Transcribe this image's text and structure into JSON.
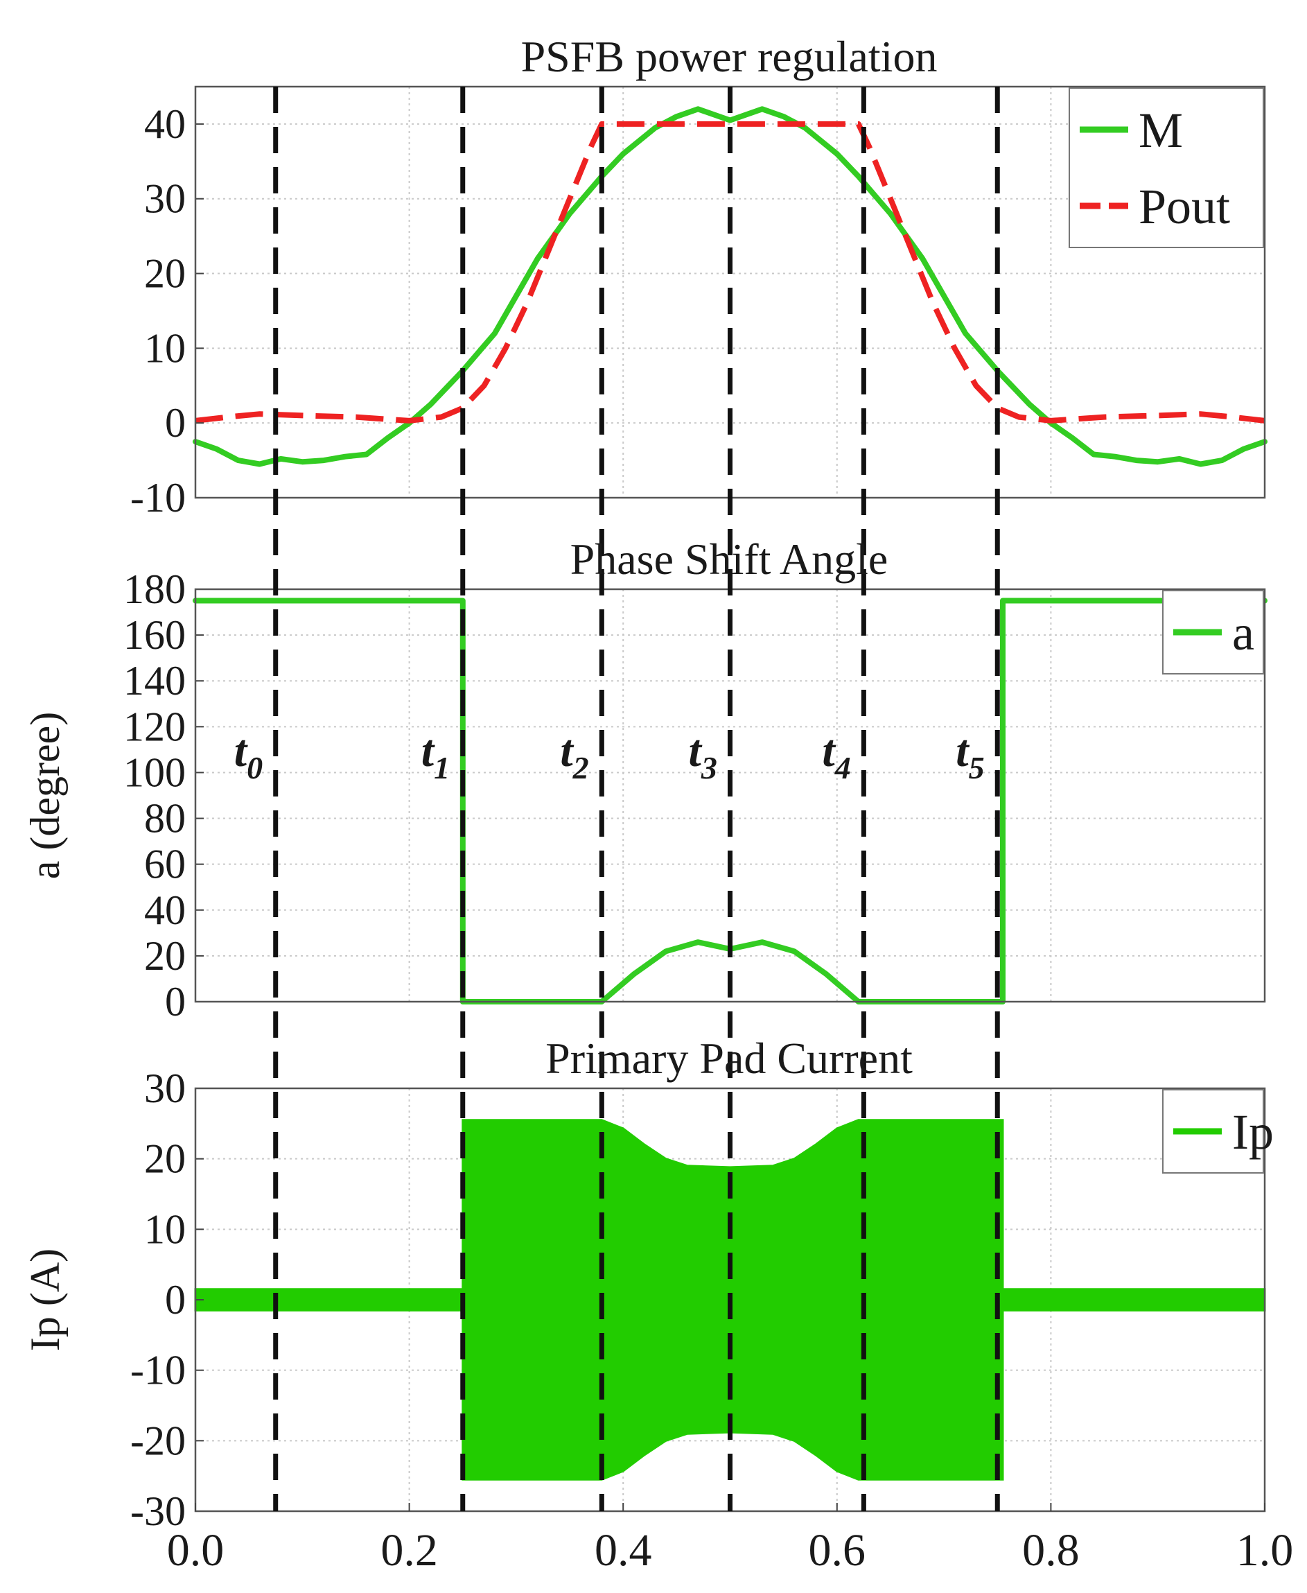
{
  "chart_data": [
    {
      "type": "line",
      "title": "PSFB power regulation",
      "xlabel": "",
      "ylabel": "",
      "xlim": [
        0,
        1
      ],
      "ylim": [
        -10,
        45
      ],
      "yticks": [
        40,
        30,
        20,
        10,
        0,
        -10
      ],
      "grid": true,
      "legend": "top-right",
      "series": [
        {
          "name": "M",
          "color": "#33cc22",
          "style": "solid",
          "x": [
            0.0,
            0.02,
            0.04,
            0.06,
            0.08,
            0.1,
            0.12,
            0.14,
            0.16,
            0.18,
            0.2,
            0.22,
            0.25,
            0.28,
            0.3,
            0.32,
            0.35,
            0.38,
            0.4,
            0.43,
            0.45,
            0.47,
            0.5,
            0.53,
            0.55,
            0.57,
            0.6,
            0.62,
            0.65,
            0.68,
            0.7,
            0.72,
            0.75,
            0.78,
            0.8,
            0.82,
            0.84,
            0.86,
            0.88,
            0.9,
            0.92,
            0.94,
            0.96,
            0.98,
            1.0
          ],
          "y": [
            -2.5,
            -3.5,
            -5,
            -5.5,
            -4.8,
            -5.2,
            -5,
            -4.5,
            -4.2,
            -2,
            0,
            2.5,
            7,
            12,
            17,
            22,
            28,
            33,
            36,
            39.5,
            41,
            42,
            40.5,
            42,
            41,
            39.5,
            36,
            33,
            28,
            22,
            17,
            12,
            7,
            2.5,
            0,
            -2,
            -4.2,
            -4.5,
            -5,
            -5.2,
            -4.8,
            -5.5,
            -5,
            -3.5,
            -2.5
          ]
        },
        {
          "name": "Pout",
          "color": "#ee2222",
          "style": "dashed",
          "x": [
            0.0,
            0.03,
            0.06,
            0.1,
            0.15,
            0.2,
            0.23,
            0.25,
            0.27,
            0.29,
            0.31,
            0.33,
            0.35,
            0.37,
            0.38,
            0.62,
            0.63,
            0.65,
            0.67,
            0.69,
            0.71,
            0.73,
            0.75,
            0.77,
            0.8,
            0.85,
            0.9,
            0.94,
            0.97,
            1.0
          ],
          "y": [
            0.3,
            0.8,
            1.2,
            1.0,
            0.8,
            0.3,
            0.8,
            2.0,
            5.0,
            10.0,
            16.0,
            23.0,
            30.0,
            37.0,
            40.0,
            40.0,
            37.0,
            30.0,
            23.0,
            16.0,
            10.0,
            5.0,
            2.0,
            0.8,
            0.3,
            0.8,
            1.0,
            1.2,
            0.8,
            0.3
          ]
        }
      ]
    },
    {
      "type": "line",
      "title": "Phase  Shift Angle",
      "xlabel": "",
      "ylabel": "a (degree)",
      "xlim": [
        0,
        1
      ],
      "ylim": [
        0,
        180
      ],
      "yticks": [
        180,
        160,
        140,
        120,
        100,
        80,
        60,
        40,
        20,
        0
      ],
      "grid": true,
      "legend": "top-right",
      "series": [
        {
          "name": "a",
          "color": "#33cc22",
          "style": "solid",
          "x": [
            0.0,
            0.25,
            0.25,
            0.38,
            0.41,
            0.44,
            0.47,
            0.5,
            0.53,
            0.56,
            0.59,
            0.62,
            0.755,
            0.755,
            1.0
          ],
          "y": [
            175,
            175,
            0,
            0,
            12,
            22,
            26,
            23,
            26,
            22,
            12,
            0,
            0,
            175,
            175
          ]
        }
      ]
    },
    {
      "type": "area",
      "title": "Primary Pad Current",
      "xlabel": "",
      "ylabel": "Ip (A)",
      "xlim": [
        0,
        1
      ],
      "ylim": [
        -30,
        30
      ],
      "yticks": [
        30,
        20,
        10,
        0,
        -10,
        -20,
        -30
      ],
      "xticks": [
        "0.0",
        "0.2",
        "0.4",
        "0.6",
        "0.8",
        "1.0"
      ],
      "grid": true,
      "legend": "top-right",
      "series": [
        {
          "name": "Ip",
          "color": "#22cc00",
          "style": "envelope",
          "x": [
            0.0,
            0.25,
            0.25,
            0.38,
            0.4,
            0.42,
            0.44,
            0.46,
            0.5,
            0.54,
            0.56,
            0.58,
            0.6,
            0.62,
            0.755,
            0.755,
            1.0
          ],
          "upper": [
            1.5,
            1.5,
            25.5,
            25.5,
            24.3,
            22,
            20,
            19,
            18.8,
            19,
            20,
            22,
            24.3,
            25.5,
            25.5,
            1.5,
            1.5
          ],
          "lower": [
            -1.5,
            -1.5,
            -25.5,
            -25.5,
            -24.3,
            -22,
            -20,
            -19,
            -18.8,
            -19,
            -20,
            -22,
            -24.3,
            -25.5,
            -25.5,
            -1.5,
            -1.5
          ]
        }
      ]
    }
  ],
  "time_markers": [
    {
      "base": "t",
      "sub": "0",
      "x": 0.075
    },
    {
      "base": "t",
      "sub": "1",
      "x": 0.25
    },
    {
      "base": "t",
      "sub": "2",
      "x": 0.38
    },
    {
      "base": "t",
      "sub": "3",
      "x": 0.5
    },
    {
      "base": "t",
      "sub": "4",
      "x": 0.625
    },
    {
      "base": "t",
      "sub": "5",
      "x": 0.75
    }
  ]
}
